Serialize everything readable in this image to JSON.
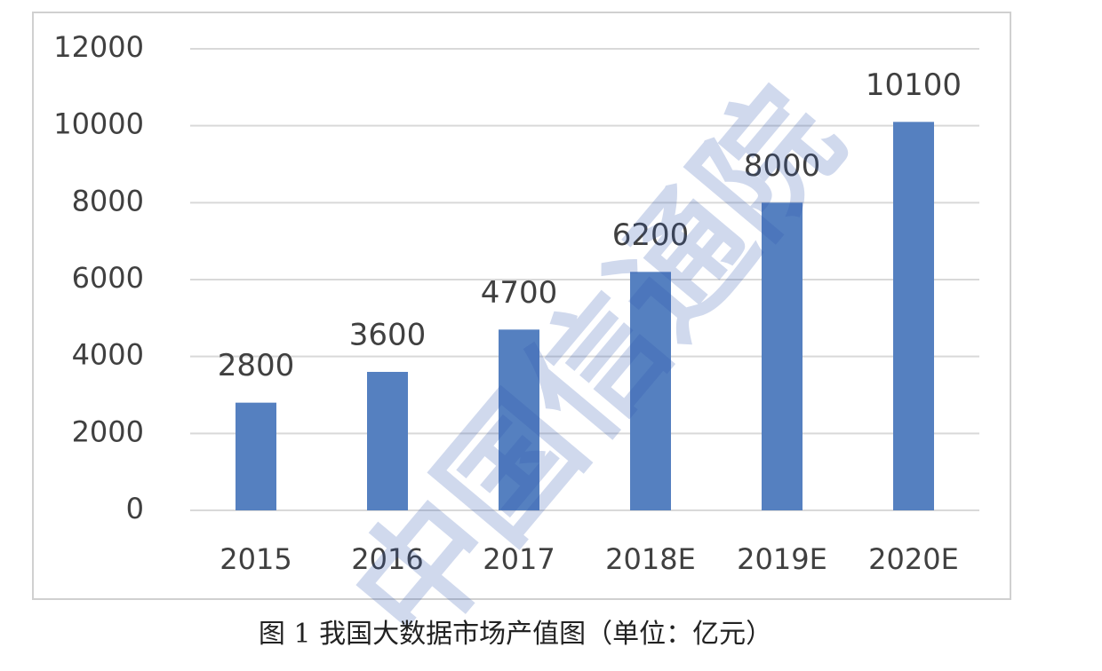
{
  "chart_data": {
    "type": "bar",
    "caption": "图 1  我国大数据市场产值图（单位：亿元）",
    "watermark": "中国信通院",
    "categories": [
      "2015",
      "2016",
      "2017",
      "2018E",
      "2019E",
      "2020E"
    ],
    "values": [
      2800,
      3600,
      4700,
      6200,
      8000,
      10100
    ],
    "color": "#5580c0",
    "ylim": [
      0,
      12000
    ],
    "yticks": [
      0,
      2000,
      4000,
      6000,
      8000,
      10000,
      12000
    ],
    "grid": true,
    "data_labels": true
  }
}
